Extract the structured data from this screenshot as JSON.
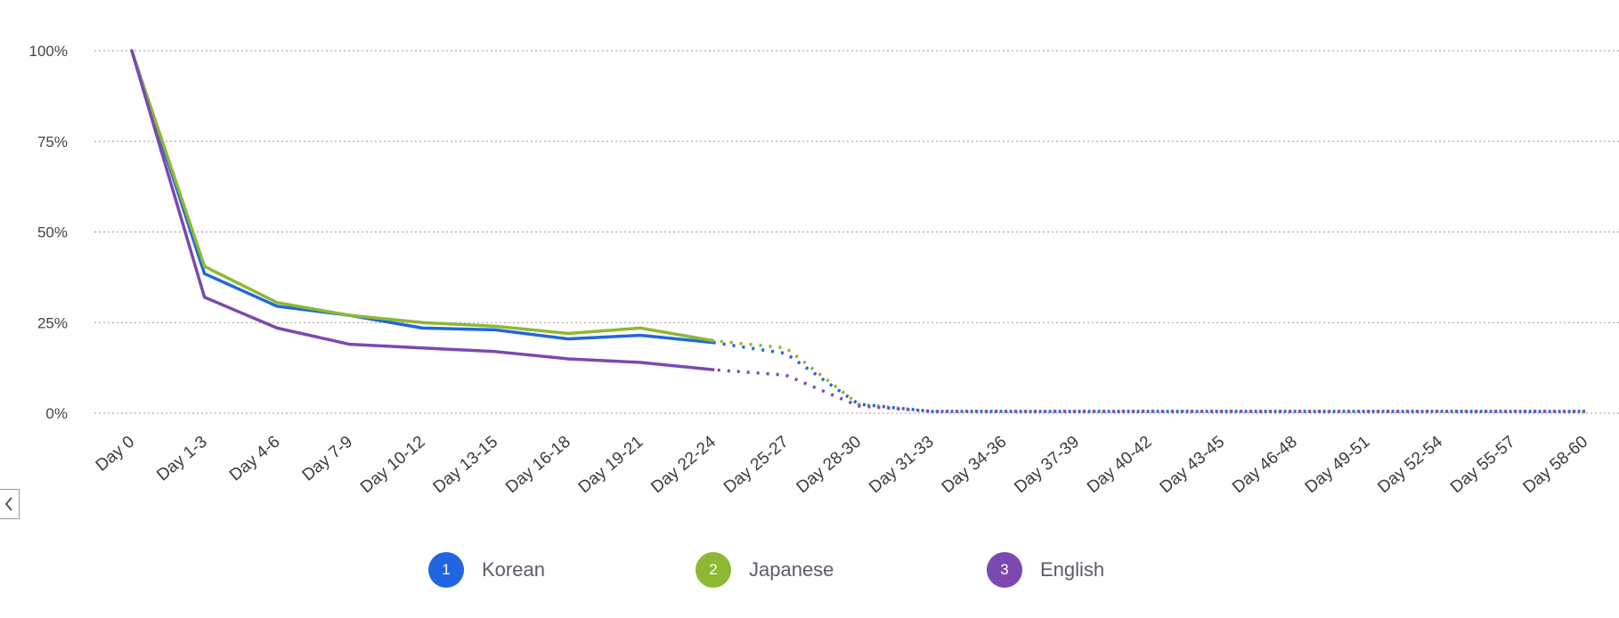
{
  "chart_data": {
    "type": "line",
    "categories": [
      "Day 0",
      "Day 1-3",
      "Day 4-6",
      "Day 7-9",
      "Day 10-12",
      "Day 13-15",
      "Day 16-18",
      "Day 19-21",
      "Day 22-24",
      "Day 25-27",
      "Day 28-30",
      "Day 31-33",
      "Day 34-36",
      "Day 37-39",
      "Day 40-42",
      "Day 43-45",
      "Day 46-48",
      "Day 49-51",
      "Day 52-54",
      "Day 55-57",
      "Day 58-60"
    ],
    "y_ticks": [
      "0%",
      "25%",
      "50%",
      "75%",
      "100%"
    ],
    "ylim": [
      0,
      100
    ],
    "grid": true,
    "solid_until_index": 8,
    "series": [
      {
        "name": "Korean",
        "number": "1",
        "color": "#2166e0",
        "values": [
          100,
          38.5,
          29.5,
          27,
          23.5,
          23,
          20.5,
          21.5,
          19.5,
          16.5,
          2.5,
          0.5,
          0.5,
          0.5,
          0.5,
          0.5,
          0.5,
          0.5,
          0.5,
          0.5,
          0.5
        ]
      },
      {
        "name": "Japanese",
        "number": "2",
        "color": "#8db832",
        "values": [
          100,
          40.5,
          30.5,
          27,
          25,
          24,
          22,
          23.5,
          20,
          18,
          2.5,
          0.5,
          0.5,
          0.5,
          0.5,
          0.5,
          0.5,
          0.5,
          0.5,
          0.5,
          0.5
        ]
      },
      {
        "name": "English",
        "number": "3",
        "color": "#7b49b0",
        "values": [
          100,
          32,
          23.5,
          19,
          18,
          17,
          15,
          14,
          12,
          10.5,
          2,
          0.5,
          0.5,
          0.5,
          0.5,
          0.5,
          0.5,
          0.5,
          0.5,
          0.5,
          0.5
        ]
      }
    ]
  },
  "ui": {
    "collapse_icon": "chevron-left-icon"
  }
}
